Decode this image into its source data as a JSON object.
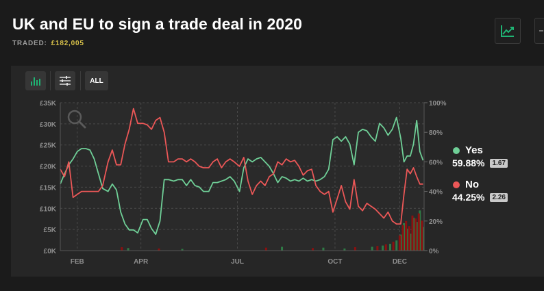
{
  "header": {
    "title": "UK and EU to sign a trade deal in 2020",
    "traded_label": "TRADED:",
    "traded_value": "£182,005"
  },
  "toolbar": {
    "all_label": "ALL",
    "icons": [
      "bar-chart-icon",
      "sliders-icon"
    ]
  },
  "legend": [
    {
      "name": "Yes",
      "percent": "59.88%",
      "odds": "1.67",
      "color": "#6fcf97"
    },
    {
      "name": "No",
      "percent": "44.25%",
      "odds": "2.26",
      "color": "#eb5757"
    }
  ],
  "colors": {
    "yes": "#6fcf97",
    "no": "#eb5757",
    "volume_yes": "#2f7a45",
    "volume_no": "#8b1010",
    "accent": "#1fb574"
  },
  "chart_data": {
    "type": "line",
    "x_type": "date",
    "x_ticks": [
      {
        "label": "FEB",
        "date": "2020-02-01"
      },
      {
        "label": "APR",
        "date": "2020-04-01"
      },
      {
        "label": "JUL",
        "date": "2020-07-01"
      },
      {
        "label": "OCT",
        "date": "2020-10-01"
      },
      {
        "label": "DEC",
        "date": "2020-12-01"
      }
    ],
    "xlim": [
      "2020-01-16",
      "2020-12-24"
    ],
    "y_left_ticks": [
      "£0K",
      "£5K",
      "£10K",
      "£15K",
      "£20K",
      "£25K",
      "£30K",
      "£35K"
    ],
    "y_left_lim": [
      0,
      35000
    ],
    "y_right_ticks": [
      "0%",
      "20%",
      "40%",
      "60%",
      "80%",
      "100%"
    ],
    "y_right_lim": [
      0,
      100
    ],
    "grid": true,
    "legend_position": "right",
    "series": [
      {
        "name": "Yes",
        "x": [
          "2020-01-16",
          "2020-01-20",
          "2020-01-24",
          "2020-01-28",
          "2020-02-01",
          "2020-02-05",
          "2020-02-09",
          "2020-02-13",
          "2020-02-17",
          "2020-02-21",
          "2020-02-25",
          "2020-03-01",
          "2020-03-05",
          "2020-03-09",
          "2020-03-13",
          "2020-03-17",
          "2020-03-21",
          "2020-03-25",
          "2020-03-29",
          "2020-04-03",
          "2020-04-07",
          "2020-04-11",
          "2020-04-15",
          "2020-04-19",
          "2020-04-23",
          "2020-04-27",
          "2020-05-02",
          "2020-05-06",
          "2020-05-10",
          "2020-05-14",
          "2020-05-18",
          "2020-05-22",
          "2020-05-26",
          "2020-05-30",
          "2020-06-04",
          "2020-06-08",
          "2020-06-12",
          "2020-06-16",
          "2020-06-20",
          "2020-06-24",
          "2020-06-28",
          "2020-07-03",
          "2020-07-07",
          "2020-07-11",
          "2020-07-15",
          "2020-07-19",
          "2020-07-23",
          "2020-07-27",
          "2020-07-31",
          "2020-08-04",
          "2020-08-08",
          "2020-08-12",
          "2020-08-16",
          "2020-08-20",
          "2020-08-24",
          "2020-08-28",
          "2020-09-01",
          "2020-09-05",
          "2020-09-09",
          "2020-09-13",
          "2020-09-17",
          "2020-09-21",
          "2020-09-25",
          "2020-09-29",
          "2020-10-03",
          "2020-10-07",
          "2020-10-11",
          "2020-10-15",
          "2020-10-19",
          "2020-10-23",
          "2020-10-27",
          "2020-10-31",
          "2020-11-04",
          "2020-11-08",
          "2020-11-12",
          "2020-11-16",
          "2020-11-20",
          "2020-11-24",
          "2020-11-28",
          "2020-12-02",
          "2020-12-05",
          "2020-12-08",
          "2020-12-11",
          "2020-12-14",
          "2020-12-17",
          "2020-12-20",
          "2020-12-23"
        ],
        "y": [
          45,
          52,
          58,
          62,
          67,
          69,
          69,
          68,
          62,
          52,
          42,
          40,
          45,
          41,
          26,
          18,
          14,
          14,
          12,
          21,
          21,
          15,
          11,
          20,
          48,
          48,
          47,
          48,
          48,
          44,
          48,
          44,
          43,
          40,
          40,
          46,
          46,
          47,
          48,
          50,
          47,
          40,
          56,
          62,
          60,
          62,
          63,
          60,
          57,
          52,
          46,
          50,
          49,
          47,
          48,
          47,
          49,
          47,
          48,
          47,
          48,
          50,
          55,
          75,
          77,
          74,
          77,
          72,
          58,
          80,
          82,
          81,
          77,
          74,
          86,
          83,
          78,
          82,
          90,
          76,
          60,
          64,
          64,
          72,
          88,
          67,
          61
        ]
      },
      {
        "name": "No",
        "x": [
          "2020-01-16",
          "2020-01-20",
          "2020-01-24",
          "2020-01-28",
          "2020-02-01",
          "2020-02-05",
          "2020-02-09",
          "2020-02-13",
          "2020-02-17",
          "2020-02-21",
          "2020-02-25",
          "2020-03-01",
          "2020-03-05",
          "2020-03-09",
          "2020-03-13",
          "2020-03-17",
          "2020-03-21",
          "2020-03-25",
          "2020-03-29",
          "2020-04-03",
          "2020-04-07",
          "2020-04-11",
          "2020-04-15",
          "2020-04-19",
          "2020-04-23",
          "2020-04-27",
          "2020-05-02",
          "2020-05-06",
          "2020-05-10",
          "2020-05-14",
          "2020-05-18",
          "2020-05-22",
          "2020-05-26",
          "2020-05-30",
          "2020-06-04",
          "2020-06-08",
          "2020-06-12",
          "2020-06-16",
          "2020-06-20",
          "2020-06-24",
          "2020-06-28",
          "2020-07-03",
          "2020-07-07",
          "2020-07-11",
          "2020-07-15",
          "2020-07-19",
          "2020-07-23",
          "2020-07-27",
          "2020-07-31",
          "2020-08-04",
          "2020-08-08",
          "2020-08-12",
          "2020-08-16",
          "2020-08-20",
          "2020-08-24",
          "2020-08-28",
          "2020-09-01",
          "2020-09-05",
          "2020-09-09",
          "2020-09-13",
          "2020-09-17",
          "2020-09-21",
          "2020-09-25",
          "2020-09-29",
          "2020-10-03",
          "2020-10-07",
          "2020-10-11",
          "2020-10-15",
          "2020-10-19",
          "2020-10-23",
          "2020-10-27",
          "2020-10-31",
          "2020-11-04",
          "2020-11-08",
          "2020-11-12",
          "2020-11-16",
          "2020-11-20",
          "2020-11-24",
          "2020-11-28",
          "2020-12-02",
          "2020-12-05",
          "2020-12-08",
          "2020-12-11",
          "2020-12-14",
          "2020-12-17",
          "2020-12-20",
          "2020-12-23"
        ],
        "y": [
          55,
          50,
          60,
          36,
          38,
          40,
          40,
          40,
          40,
          40,
          44,
          60,
          68,
          58,
          58,
          72,
          82,
          96,
          86,
          86,
          85,
          82,
          88,
          90,
          80,
          60,
          60,
          62,
          62,
          60,
          62,
          60,
          57,
          56,
          56,
          60,
          62,
          56,
          60,
          62,
          60,
          57,
          63,
          47,
          38,
          44,
          47,
          44,
          50,
          52,
          60,
          58,
          62,
          60,
          61,
          57,
          51,
          54,
          55,
          44,
          40,
          38,
          40,
          26,
          35,
          44,
          33,
          28,
          48,
          30,
          27,
          32,
          30,
          28,
          25,
          22,
          26,
          20,
          18,
          18,
          38,
          55,
          52,
          56,
          50,
          45,
          45
        ]
      }
    ],
    "volume": {
      "series": [
        {
          "name": "Yes",
          "x": [
            "2020-03-20",
            "2020-05-10",
            "2020-08-12",
            "2020-09-20",
            "2020-10-10",
            "2020-11-05",
            "2020-11-15",
            "2020-11-22",
            "2020-11-28",
            "2020-12-02",
            "2020-12-05",
            "2020-12-08",
            "2020-12-11",
            "2020-12-14",
            "2020-12-17",
            "2020-12-20",
            "2020-12-23"
          ],
          "y": [
            600,
            400,
            900,
            700,
            500,
            900,
            1200,
            1600,
            2400,
            3800,
            6500,
            5200,
            4000,
            7800,
            6800,
            9500,
            5600
          ]
        },
        {
          "name": "No",
          "x": [
            "2020-03-14",
            "2020-04-18",
            "2020-07-28",
            "2020-09-10",
            "2020-10-20",
            "2020-11-10",
            "2020-11-18",
            "2020-11-25",
            "2020-12-01",
            "2020-12-04",
            "2020-12-07",
            "2020-12-10",
            "2020-12-13",
            "2020-12-16",
            "2020-12-19",
            "2020-12-22"
          ],
          "y": [
            800,
            500,
            700,
            600,
            800,
            1100,
            1500,
            2100,
            3600,
            6000,
            7000,
            5800,
            8300,
            7600,
            8800,
            7100
          ]
        }
      ]
    }
  }
}
